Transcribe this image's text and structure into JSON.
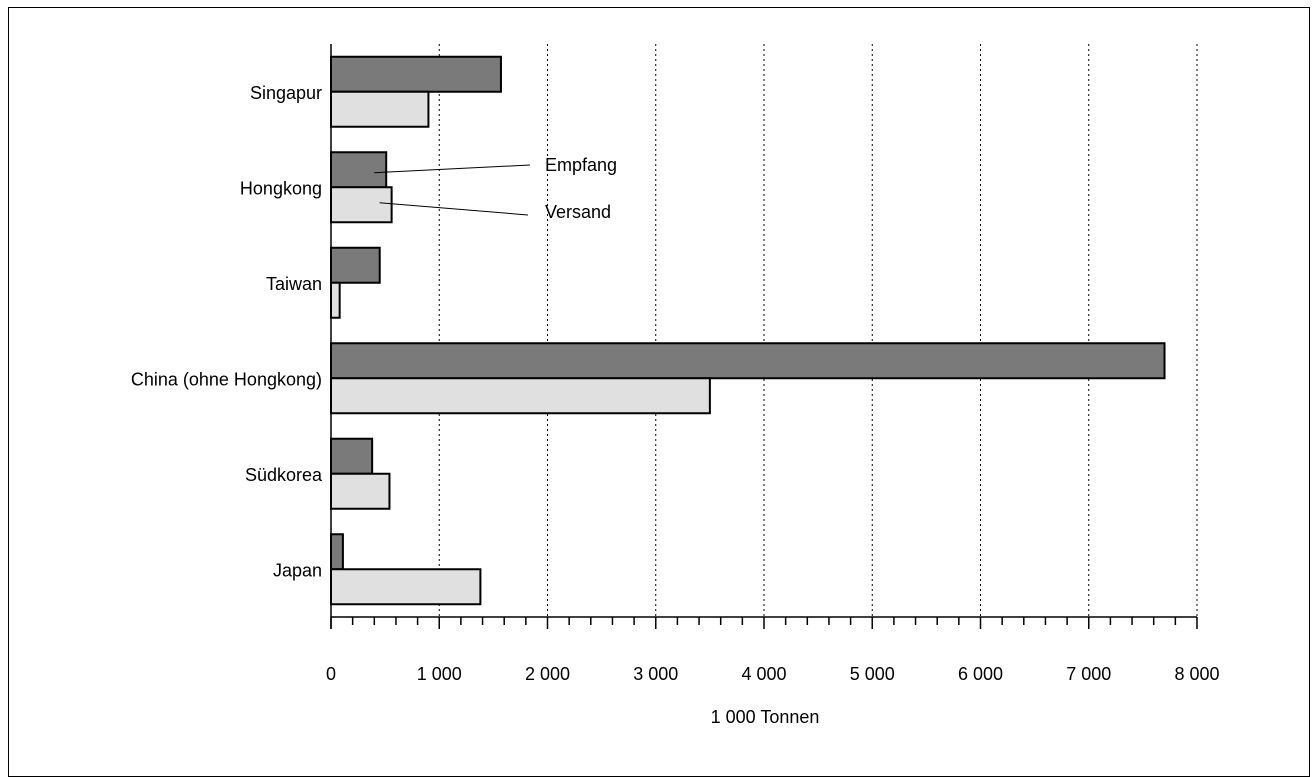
{
  "chart_data": {
    "type": "bar",
    "orientation": "horizontal",
    "categories": [
      "Singapur",
      "Hongkong",
      "Taiwan",
      "China (ohne Hongkong)",
      "Südkorea",
      "Japan"
    ],
    "series": [
      {
        "name": "Empfang",
        "values": [
          1570,
          510,
          450,
          7700,
          380,
          110
        ],
        "color": "#7a7a7a"
      },
      {
        "name": "Versand",
        "values": [
          900,
          560,
          80,
          3500,
          540,
          1380
        ],
        "color": "#e0e0e0"
      }
    ],
    "xlabel": "1 000 Tonnen",
    "xlim": [
      0,
      8000
    ],
    "xticks": [
      0,
      1000,
      2000,
      3000,
      4000,
      5000,
      6000,
      7000,
      8000
    ],
    "xtick_labels": [
      "0",
      "1 000",
      "2 000",
      "3 000",
      "4 000",
      "5 000",
      "6 000",
      "7 000",
      "8 000"
    ],
    "grid": "vertical dotted",
    "legend": "callout labels"
  }
}
